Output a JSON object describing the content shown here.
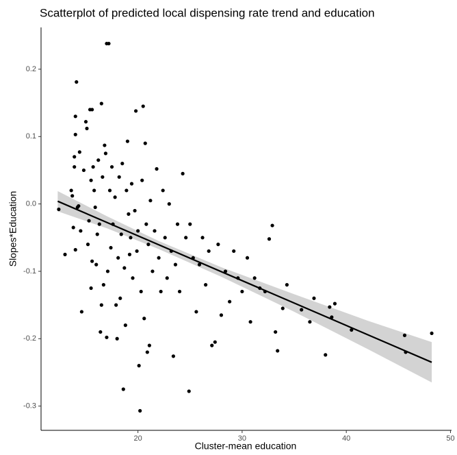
{
  "chart_data": {
    "type": "scatter",
    "title": "Scatterplot of predicted local dispensing rate trend and education",
    "x_label": "Cluster-mean education",
    "y_label": "Slopes*Education",
    "color": "#000000",
    "x": [
      12.4,
      13.0,
      13.6,
      13.7,
      13.8,
      13.9,
      13.9,
      14.0,
      14.0,
      14.1,
      14.0,
      14.2,
      14.3,
      14.4,
      14.5,
      14.6,
      14.8,
      15.0,
      15.1,
      15.2,
      15.3,
      15.4,
      15.5,
      15.6,
      15.7,
      15.8,
      15.6,
      15.5,
      15.9,
      16.0,
      16.1,
      16.2,
      16.3,
      16.4,
      16.5,
      16.5,
      16.6,
      16.7,
      16.8,
      16.9,
      17.0,
      17.2,
      17.0,
      17.1,
      17.3,
      17.4,
      17.5,
      17.6,
      17.8,
      17.9,
      18.0,
      18.1,
      18.2,
      18.3,
      18.4,
      18.5,
      18.6,
      18.7,
      18.8,
      18.9,
      19.0,
      19.1,
      19.2,
      19.3,
      19.4,
      19.5,
      19.7,
      19.8,
      19.9,
      20.0,
      20.1,
      20.2,
      20.3,
      20.4,
      20.5,
      20.6,
      20.7,
      20.8,
      20.9,
      21.0,
      21.1,
      21.2,
      21.4,
      21.6,
      21.8,
      22.0,
      22.2,
      22.4,
      22.6,
      22.8,
      23.0,
      23.2,
      23.4,
      23.6,
      23.8,
      24.0,
      24.3,
      24.6,
      24.9,
      25.0,
      25.3,
      25.6,
      25.9,
      26.2,
      26.5,
      26.8,
      27.1,
      27.4,
      27.7,
      28.0,
      28.4,
      28.8,
      29.2,
      29.6,
      30.0,
      30.5,
      30.8,
      31.2,
      31.7,
      32.2,
      32.6,
      32.9,
      33.2,
      33.4,
      33.9,
      34.3,
      35.7,
      36.5,
      36.9,
      38.0,
      38.4,
      38.6,
      38.9,
      40.5,
      45.6,
      45.7,
      48.2
    ],
    "values": [
      -0.008,
      -0.075,
      0.02,
      0.012,
      -0.035,
      0.07,
      0.055,
      0.103,
      0.13,
      0.181,
      -0.068,
      -0.005,
      -0.003,
      0.077,
      -0.04,
      -0.16,
      0.05,
      0.122,
      0.112,
      -0.06,
      -0.025,
      0.14,
      0.035,
      0.14,
      0.055,
      0.02,
      -0.085,
      -0.125,
      -0.005,
      -0.09,
      -0.045,
      0.065,
      -0.03,
      -0.19,
      0.149,
      -0.15,
      0.04,
      -0.12,
      0.087,
      0.075,
      0.238,
      0.238,
      -0.198,
      -0.1,
      0.02,
      -0.065,
      0.055,
      -0.03,
      0.01,
      -0.15,
      -0.2,
      -0.08,
      0.04,
      -0.14,
      -0.045,
      0.06,
      -0.275,
      -0.095,
      -0.18,
      0.02,
      0.093,
      -0.015,
      -0.075,
      -0.05,
      0.03,
      -0.11,
      -0.01,
      0.138,
      -0.07,
      -0.04,
      -0.24,
      -0.307,
      -0.13,
      0.035,
      0.145,
      -0.17,
      0.09,
      -0.03,
      -0.22,
      -0.06,
      -0.21,
      0.005,
      -0.1,
      -0.04,
      0.052,
      -0.08,
      -0.13,
      0.02,
      -0.05,
      -0.11,
      0.0,
      -0.07,
      -0.226,
      -0.09,
      -0.03,
      -0.13,
      0.045,
      -0.05,
      -0.278,
      -0.03,
      -0.08,
      -0.16,
      -0.09,
      -0.05,
      -0.12,
      -0.07,
      -0.21,
      -0.205,
      -0.06,
      -0.165,
      -0.1,
      -0.145,
      -0.07,
      -0.11,
      -0.13,
      -0.08,
      -0.175,
      -0.11,
      -0.125,
      -0.13,
      -0.052,
      -0.032,
      -0.19,
      -0.218,
      -0.155,
      -0.12,
      -0.157,
      -0.175,
      -0.14,
      -0.224,
      -0.153,
      -0.168,
      -0.148,
      -0.187,
      -0.195,
      -0.22,
      -0.192
    ],
    "fit": {
      "x": [
        12.3,
        48.2
      ],
      "values": [
        0.004,
        -0.235
      ],
      "color": "#000000"
    },
    "band": {
      "x": [
        12.3,
        17,
        22,
        28,
        35,
        42,
        48.2
      ],
      "lower": [
        -0.011,
        -0.036,
        -0.067,
        -0.108,
        -0.16,
        -0.215,
        -0.265
      ],
      "upper": [
        0.019,
        -0.018,
        -0.055,
        -0.094,
        -0.134,
        -0.173,
        -0.205
      ],
      "color": "#d3d3d3"
    },
    "xlim": [
      10.7,
      50.1
    ],
    "ylim": [
      -0.336,
      0.262
    ],
    "xticks": [
      20,
      30,
      40,
      50
    ],
    "yticks": [
      0.2,
      0.1,
      {
        "value": 0,
        "label": "0.0"
      },
      -0.1,
      -0.2,
      -0.3
    ]
  }
}
